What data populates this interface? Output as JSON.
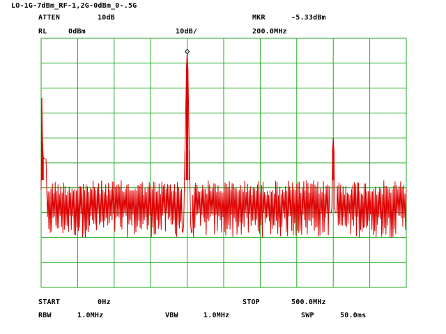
{
  "title": "LO-1G-7dBm_RF-1,2G-0dBm_0-.5G",
  "header": {
    "atten_label": "ATTEN",
    "atten_value": "10dB",
    "mkr_label": "MKR",
    "mkr_value": "-5.33dBm",
    "rl_label": "RL",
    "rl_value": "0dBm",
    "scale": "10dB/",
    "mkr_freq": "200.0MHz"
  },
  "footer": {
    "start_label": "START",
    "start_value": "0Hz",
    "stop_label": "STOP",
    "stop_value": "500.0MHz",
    "rbw_label": "RBW",
    "rbw_value": "1.0MHz",
    "vbw_label": "VBW",
    "vbw_value": "1.0MHz",
    "swp_label": "SWP",
    "swp_value": "50.0ms"
  },
  "colors": {
    "grid": "#22aa22",
    "trace": "#dd0000",
    "marker": "#000000"
  },
  "chart_data": {
    "type": "line",
    "title": "LO-1G-7dBm_RF-1,2G-0dBm_0-.5G",
    "x_unit": "MHz",
    "y_unit": "dBm",
    "xlim": [
      0,
      500
    ],
    "ylim": [
      -100,
      0
    ],
    "divisions_x": 10,
    "divisions_y": 10,
    "grid": true,
    "noise_floor_range": [
      -80,
      -57
    ],
    "series": [
      {
        "x": [
          0,
          1,
          2,
          3,
          195,
          197,
          199,
          200,
          201,
          203,
          205,
          398,
          399,
          400,
          401,
          402,
          500
        ],
        "y": [
          -61,
          -24,
          -42,
          -48,
          -78,
          -45,
          -12,
          -5.33,
          -12,
          -45,
          -78,
          -70,
          -45,
          -40,
          -45,
          -70,
          -70
        ]
      }
    ],
    "marker": {
      "x": 200.0,
      "y": -5.33
    }
  }
}
